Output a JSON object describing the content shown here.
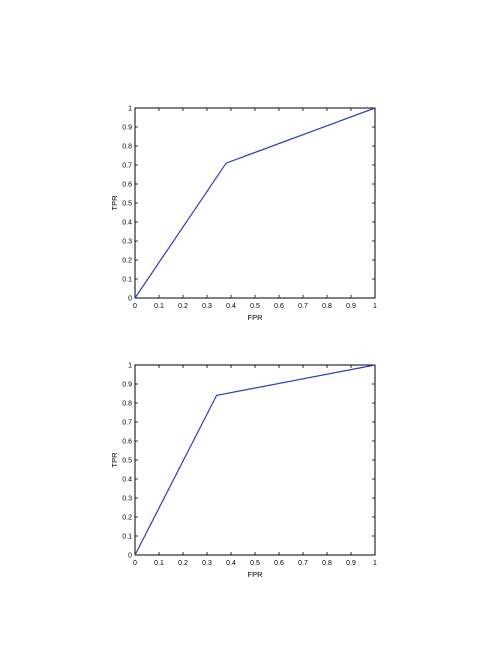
{
  "chart_data": [
    {
      "type": "line",
      "xlabel": "FPR",
      "ylabel": "TPR",
      "xlim": [
        0,
        1
      ],
      "ylim": [
        0,
        1
      ],
      "xticks": [
        "0",
        "0.1",
        "0.2",
        "0.3",
        "0.4",
        "0.5",
        "0.6",
        "0.7",
        "0.8",
        "0.9",
        "1"
      ],
      "yticks": [
        "0",
        "0.1",
        "0.2",
        "0.3",
        "0.4",
        "0.5",
        "0.6",
        "0.7",
        "0.8",
        "0.9",
        "1"
      ],
      "grid": false,
      "series": [
        {
          "x": [
            0,
            0.38,
            1
          ],
          "y": [
            0,
            0.71,
            1
          ],
          "color": "#2b3fb5"
        }
      ]
    },
    {
      "type": "line",
      "xlabel": "FPR",
      "ylabel": "TPR",
      "xlim": [
        0,
        1
      ],
      "ylim": [
        0,
        1
      ],
      "xticks": [
        "0",
        "0.1",
        "0.2",
        "0.3",
        "0.4",
        "0.5",
        "0.6",
        "0.7",
        "0.8",
        "0.9",
        "1"
      ],
      "yticks": [
        "0",
        "0.1",
        "0.2",
        "0.3",
        "0.4",
        "0.5",
        "0.6",
        "0.7",
        "0.8",
        "0.9",
        "1"
      ],
      "grid": false,
      "series": [
        {
          "x": [
            0,
            0.34,
            1
          ],
          "y": [
            0,
            0.84,
            1
          ],
          "color": "#2b3fb5"
        }
      ]
    }
  ]
}
